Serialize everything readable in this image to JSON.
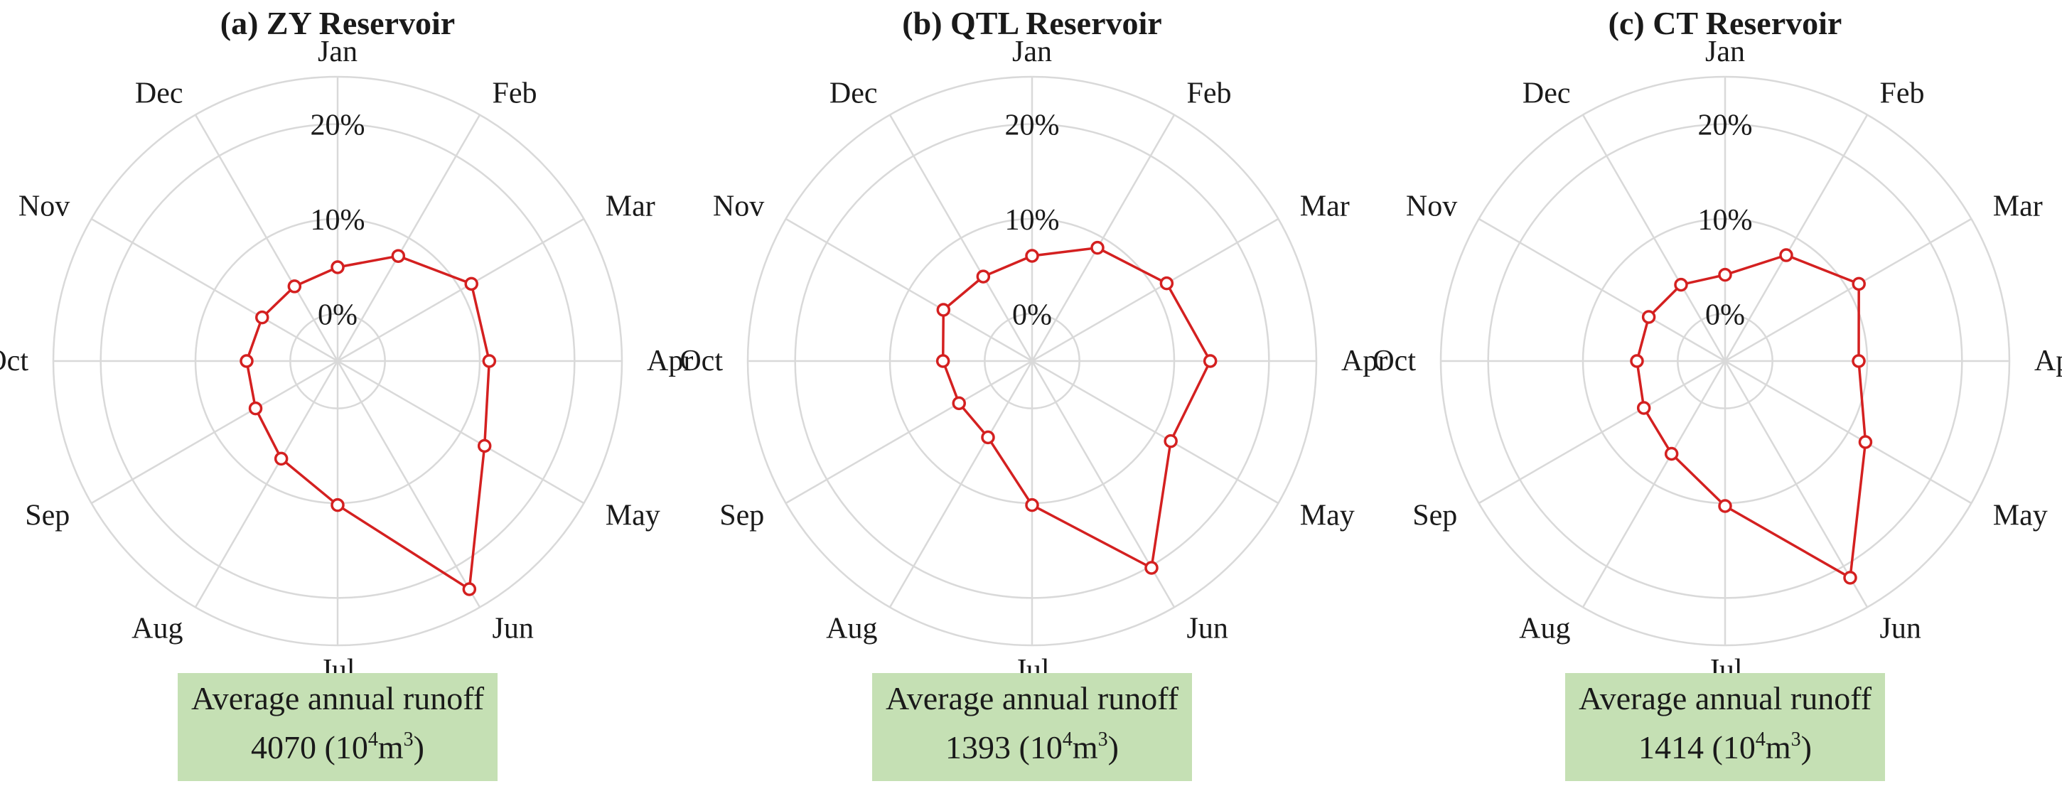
{
  "figure": {
    "panels": [
      {
        "title": "(a) ZY Reservoir",
        "runoff_label": "Average annual runoff",
        "runoff_value": "4070",
        "runoff_unit_open": "(10",
        "runoff_unit_exp1": "4",
        "runoff_unit_mid": "m",
        "runoff_unit_exp2": "3",
        "runoff_unit_close": ")"
      },
      {
        "title": "(b) QTL Reservoir",
        "runoff_label": "Average annual runoff",
        "runoff_value": "1393",
        "runoff_unit_open": "(10",
        "runoff_unit_exp1": "4",
        "runoff_unit_mid": "m",
        "runoff_unit_exp2": "3",
        "runoff_unit_close": ")"
      },
      {
        "title": "(c) CT Reservoir",
        "runoff_label": "Average annual runoff",
        "runoff_value": "1414",
        "runoff_unit_open": "(10",
        "runoff_unit_exp1": "4",
        "runoff_unit_mid": "m",
        "runoff_unit_exp2": "3",
        "runoff_unit_close": ")"
      }
    ]
  },
  "colors": {
    "series": "#d42020",
    "grid": "#d9d9d9",
    "note_box": "#c5e0b4",
    "text": "#1a1a1a"
  },
  "chart_data": [
    {
      "type": "radar",
      "title": "(a) ZY Reservoir",
      "categories": [
        "Jan",
        "Feb",
        "Mar",
        "Apr",
        "May",
        "Jun",
        "Jul",
        "Aug",
        "Sep",
        "Oct",
        "Nov",
        "Dec"
      ],
      "values": [
        4.9,
        7.8,
        11.3,
        11.0,
        12.9,
        22.8,
        10.2,
        6.9,
        5.0,
        4.6,
        4.2,
        4.1
      ],
      "rlim": [
        -5,
        25
      ],
      "ring_ticks": [
        0,
        10,
        20
      ],
      "ring_tick_labels": [
        "0%",
        "10%",
        "20%"
      ],
      "grid": true,
      "legend": "none"
    },
    {
      "type": "radar",
      "title": "(b) QTL Reservoir",
      "categories": [
        "Jan",
        "Feb",
        "Mar",
        "Apr",
        "May",
        "Jun",
        "Jul",
        "Aug",
        "Sep",
        "Oct",
        "Nov",
        "Dec"
      ],
      "values": [
        6.1,
        8.8,
        11.4,
        13.8,
        11.9,
        20.2,
        10.2,
        4.3,
        3.9,
        4.4,
        5.8,
        5.3
      ],
      "rlim": [
        -5,
        25
      ],
      "ring_ticks": [
        0,
        10,
        20
      ],
      "ring_tick_labels": [
        "0%",
        "10%",
        "20%"
      ],
      "grid": true,
      "legend": "none"
    },
    {
      "type": "radar",
      "title": "(c) CT Reservoir",
      "categories": [
        "Jan",
        "Feb",
        "Mar",
        "Apr",
        "May",
        "Jun",
        "Jul",
        "Aug",
        "Sep",
        "Oct",
        "Nov",
        "Dec"
      ],
      "values": [
        4.1,
        7.9,
        11.3,
        9.1,
        12.1,
        21.4,
        10.3,
        6.3,
        4.9,
        4.3,
        4.3,
        4.3
      ],
      "rlim": [
        -5,
        25
      ],
      "ring_ticks": [
        0,
        10,
        20
      ],
      "ring_tick_labels": [
        "0%",
        "10%",
        "20%"
      ],
      "grid": true,
      "legend": "none"
    }
  ]
}
